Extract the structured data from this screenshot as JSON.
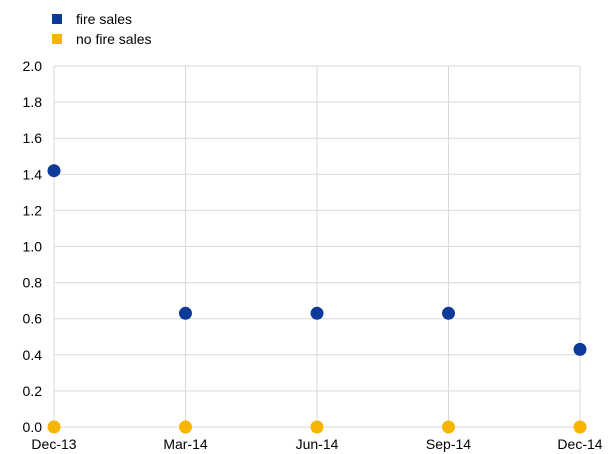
{
  "colors": {
    "fire_sales": "#0D3A98",
    "no_fire_sales": "#F7B500",
    "grid": "#D9D9D9"
  },
  "chart_data": {
    "type": "scatter",
    "categories": [
      "Dec-13",
      "Mar-14",
      "Jun-14",
      "Sep-14",
      "Dec-14"
    ],
    "series": [
      {
        "name": "fire sales",
        "values": [
          1.42,
          0.63,
          0.63,
          0.63,
          0.43
        ]
      },
      {
        "name": "no fire sales",
        "values": [
          0.0,
          0.0,
          0.0,
          0.0,
          0.0
        ]
      }
    ],
    "ylim": [
      0,
      2.0
    ],
    "y_ticks": [
      "0.0",
      "0.2",
      "0.4",
      "0.6",
      "0.8",
      "1.0",
      "1.2",
      "1.4",
      "1.6",
      "1.8",
      "2.0"
    ],
    "grid": true,
    "legend_position": "top-left",
    "title": "",
    "xlabel": "",
    "ylabel": ""
  }
}
